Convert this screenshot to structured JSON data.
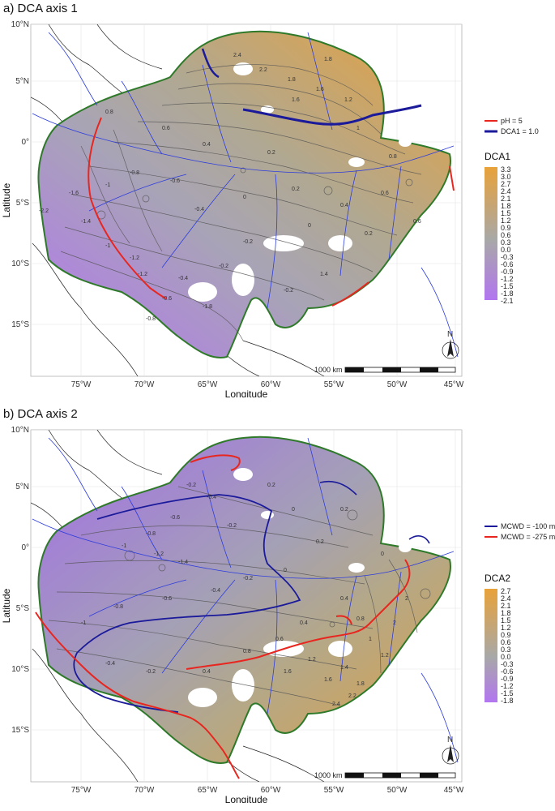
{
  "panels": [
    {
      "title": "a) DCA axis 1",
      "ylabel": "Latitude",
      "xlabel": "Longitude",
      "lat_ticks": [
        "10°N",
        "5°N",
        "0°",
        "5°S",
        "10°S",
        "15°S"
      ],
      "lon_ticks": [
        "75°W",
        "70°W",
        "65°W",
        "60°W",
        "55°W",
        "50°W",
        "45°W"
      ],
      "line_legend": [
        {
          "label": "pH = 5",
          "color": "#e8261f"
        },
        {
          "label": "DCA1 = 1.0",
          "color": "#1a1a9a"
        }
      ],
      "color_title": "DCA1",
      "color_values": [
        "3.3",
        "3.0",
        "2.7",
        "2.4",
        "2.1",
        "1.8",
        "1.5",
        "1.2",
        "0.9",
        "0.6",
        "0.3",
        "0.0",
        "-0.3",
        "-0.6",
        "-0.9",
        "-1.2",
        "-1.5",
        "-1.8",
        "-2.1"
      ],
      "scale_label": "1000 km",
      "north_label": "N",
      "contour_labels": [
        "2.4",
        "2.2",
        "1.8",
        "1.6",
        "1.2",
        "1",
        "0.8",
        "0.6",
        "0.4",
        "0.2",
        "0",
        "-0.2",
        "-0.4",
        "-0.6",
        "-0.8",
        "-1",
        "-1.2",
        "-1.4",
        "-1.6",
        "-1.8",
        "-2.2",
        "0.8",
        "0.6",
        "0.4",
        "0.2",
        "0",
        "-0.2",
        "-0.4",
        "-0.6",
        "-0.8",
        "-1",
        "-1.2",
        "1.8",
        "1.6",
        "1.4",
        "0.6",
        "0.2",
        "-0.2"
      ]
    },
    {
      "title": "b) DCA axis 2",
      "ylabel": "Latitude",
      "xlabel": "Longitude",
      "lat_ticks": [
        "10°N",
        "5°N",
        "0°",
        "5°S",
        "10°S",
        "15°S"
      ],
      "lon_ticks": [
        "75°W",
        "70°W",
        "65°W",
        "60°W",
        "55°W",
        "50°W",
        "45°W"
      ],
      "line_legend": [
        {
          "label": "MCWD = -100 mm",
          "color": "#1a1a9a"
        },
        {
          "label": "MCWD = -275 mm",
          "color": "#e8261f"
        }
      ],
      "color_title": "DCA2",
      "color_values": [
        "2.7",
        "2.4",
        "2.1",
        "1.8",
        "1.5",
        "1.2",
        "0.9",
        "0.6",
        "0.3",
        "0.0",
        "-0.3",
        "-0.6",
        "-0.9",
        "-1.2",
        "-1.5",
        "-1.8"
      ],
      "scale_label": "1000 km",
      "north_label": "N",
      "contour_labels": [
        "-0.2",
        "-0.4",
        "-0.6",
        "-0.8",
        "-1",
        "-1.2",
        "-1.4",
        "0.2",
        "0",
        "-0.2",
        "-0.4",
        "-0.6",
        "-0.8",
        "-1",
        "0.4",
        "0.8",
        "1",
        "1.2",
        "1.4",
        "1.6",
        "1.8",
        "2",
        "2.2",
        "2.4",
        "0.2",
        "0",
        "-0.2",
        "0.4",
        "0.6",
        "0.8",
        "1.2",
        "1.6",
        "2",
        "0.2",
        "0",
        "0.4",
        "-0.2",
        "-0.4"
      ]
    }
  ],
  "colors": {
    "ramp_high": "#e8a23a",
    "ramp_mid": "#a8a8a8",
    "ramp_low": "#b276f0",
    "boundary": "#2f7a2a",
    "rivers": "#2c3cdd",
    "borders": "#222222"
  }
}
